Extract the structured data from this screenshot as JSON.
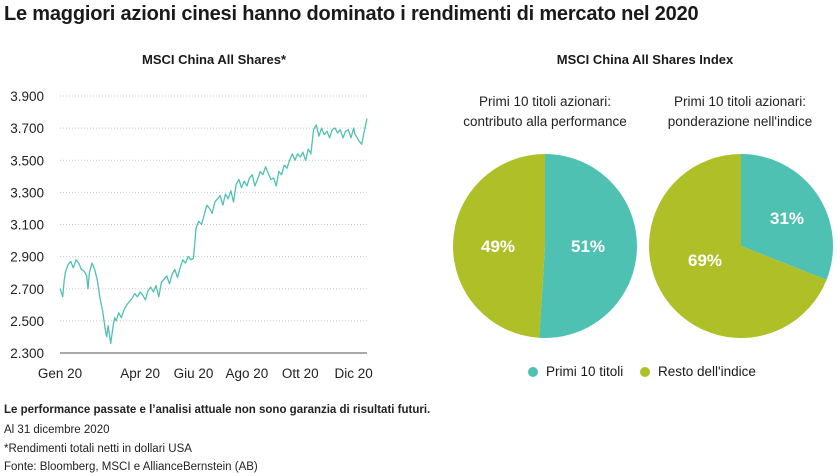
{
  "title": "Le maggiori azioni cinesi hanno dominato i rendimenti di mercato nel 2020",
  "colors": {
    "teal": "#4fc1b2",
    "green": "#aebf27",
    "axis": "#555555",
    "grid": "#c8c8c8"
  },
  "footer": {
    "disclaimer": "Le performance passate e l’analisi attuale non sono garanzia di risultati futuri.",
    "date": "Al 31 dicembre 2020",
    "note": "*Rendimenti totali netti in dollari USA",
    "source": "Fonte: Bloomberg, MSCI e AllianceBernstein (AB)"
  },
  "legend": {
    "primi": "Primi 10 titoli",
    "resto": "Resto dell'indice"
  },
  "chart_data": [
    {
      "type": "line",
      "title": "MSCI China All Shares*",
      "xlabel": "",
      "ylabel": "",
      "ylim": [
        2300,
        3900
      ],
      "yticks": [
        2300,
        2500,
        2700,
        2900,
        3100,
        3300,
        3500,
        3700,
        3900
      ],
      "ytick_labels": [
        "2.300",
        "2.500",
        "2.700",
        "2.900",
        "3.100",
        "3.300",
        "3.500",
        "3.700",
        "3.900"
      ],
      "xtick_labels": [
        "Gen 20",
        "Apr 20",
        "Giu 20",
        "Ago 20",
        "Ott 20",
        "Dic 20"
      ],
      "xtick_pos": [
        0,
        3,
        5,
        7,
        9,
        11
      ],
      "xrange": [
        0,
        11.5
      ],
      "grid": true,
      "series": [
        {
          "x": [
            0.0,
            0.05,
            0.1,
            0.15,
            0.2,
            0.3,
            0.4,
            0.5,
            0.6,
            0.7,
            0.8,
            0.9,
            1.0,
            1.05,
            1.1,
            1.2,
            1.3,
            1.4,
            1.5,
            1.6,
            1.7,
            1.75,
            1.8,
            1.9,
            2.0,
            2.05,
            2.1,
            2.2,
            2.3,
            2.4,
            2.5,
            2.6,
            2.7,
            2.8,
            2.9,
            3.0,
            3.1,
            3.2,
            3.3,
            3.4,
            3.5,
            3.6,
            3.7,
            3.8,
            3.9,
            4.0,
            4.1,
            4.2,
            4.3,
            4.4,
            4.5,
            4.6,
            4.7,
            4.8,
            4.9,
            5.0,
            5.1,
            5.2,
            5.3,
            5.4,
            5.5,
            5.6,
            5.7,
            5.8,
            5.9,
            6.0,
            6.1,
            6.2,
            6.3,
            6.4,
            6.5,
            6.6,
            6.7,
            6.8,
            6.9,
            7.0,
            7.1,
            7.2,
            7.3,
            7.4,
            7.5,
            7.6,
            7.7,
            7.8,
            7.9,
            8.0,
            8.1,
            8.2,
            8.3,
            8.4,
            8.5,
            8.6,
            8.7,
            8.8,
            8.9,
            9.0,
            9.1,
            9.2,
            9.3,
            9.4,
            9.5,
            9.6,
            9.7,
            9.8,
            9.9,
            10.0,
            10.1,
            10.2,
            10.3,
            10.4,
            10.5,
            10.6,
            10.7,
            10.8,
            10.9,
            11.0,
            11.05,
            11.1,
            11.2,
            11.3,
            11.4,
            11.5
          ],
          "values": [
            2700,
            2680,
            2650,
            2740,
            2800,
            2850,
            2870,
            2830,
            2880,
            2860,
            2820,
            2810,
            2780,
            2700,
            2800,
            2860,
            2820,
            2750,
            2640,
            2560,
            2440,
            2400,
            2470,
            2360,
            2480,
            2520,
            2500,
            2550,
            2520,
            2570,
            2600,
            2620,
            2640,
            2670,
            2650,
            2680,
            2660,
            2630,
            2690,
            2710,
            2680,
            2720,
            2650,
            2740,
            2760,
            2780,
            2730,
            2790,
            2820,
            2770,
            2830,
            2880,
            2860,
            2900,
            2880,
            2890,
            3080,
            3120,
            3100,
            3160,
            3220,
            3200,
            3170,
            3240,
            3260,
            3280,
            3220,
            3290,
            3260,
            3310,
            3240,
            3350,
            3380,
            3330,
            3370,
            3340,
            3390,
            3410,
            3340,
            3380,
            3430,
            3410,
            3460,
            3420,
            3380,
            3390,
            3340,
            3430,
            3410,
            3470,
            3450,
            3500,
            3540,
            3500,
            3540,
            3520,
            3550,
            3500,
            3570,
            3540,
            3690,
            3720,
            3650,
            3700,
            3660,
            3680,
            3640,
            3690,
            3700,
            3670,
            3690,
            3640,
            3680,
            3690,
            3640,
            3700,
            3660,
            3650,
            3620,
            3600,
            3680,
            3760
          ]
        }
      ]
    },
    {
      "type": "pie",
      "title": "MSCI China All Shares Index",
      "subtitle": "Primi 10 titoli azionari: contributo alla performance",
      "subtitle_lines": [
        "Primi 10 titoli azionari:",
        "contributo alla performance"
      ],
      "slices": [
        {
          "label": "Primi 10 titoli",
          "value": 51,
          "text": "51%"
        },
        {
          "label": "Resto dell'indice",
          "value": 49,
          "text": "49%"
        }
      ]
    },
    {
      "type": "pie",
      "subtitle": "Primi 10 titoli azionari: ponderazione nell'indice",
      "subtitle_lines": [
        "Primi 10 titoli azionari:",
        "ponderazione nell'indice"
      ],
      "slices": [
        {
          "label": "Primi 10 titoli",
          "value": 31,
          "text": "31%"
        },
        {
          "label": "Resto dell'indice",
          "value": 69,
          "text": "69%"
        }
      ]
    }
  ]
}
